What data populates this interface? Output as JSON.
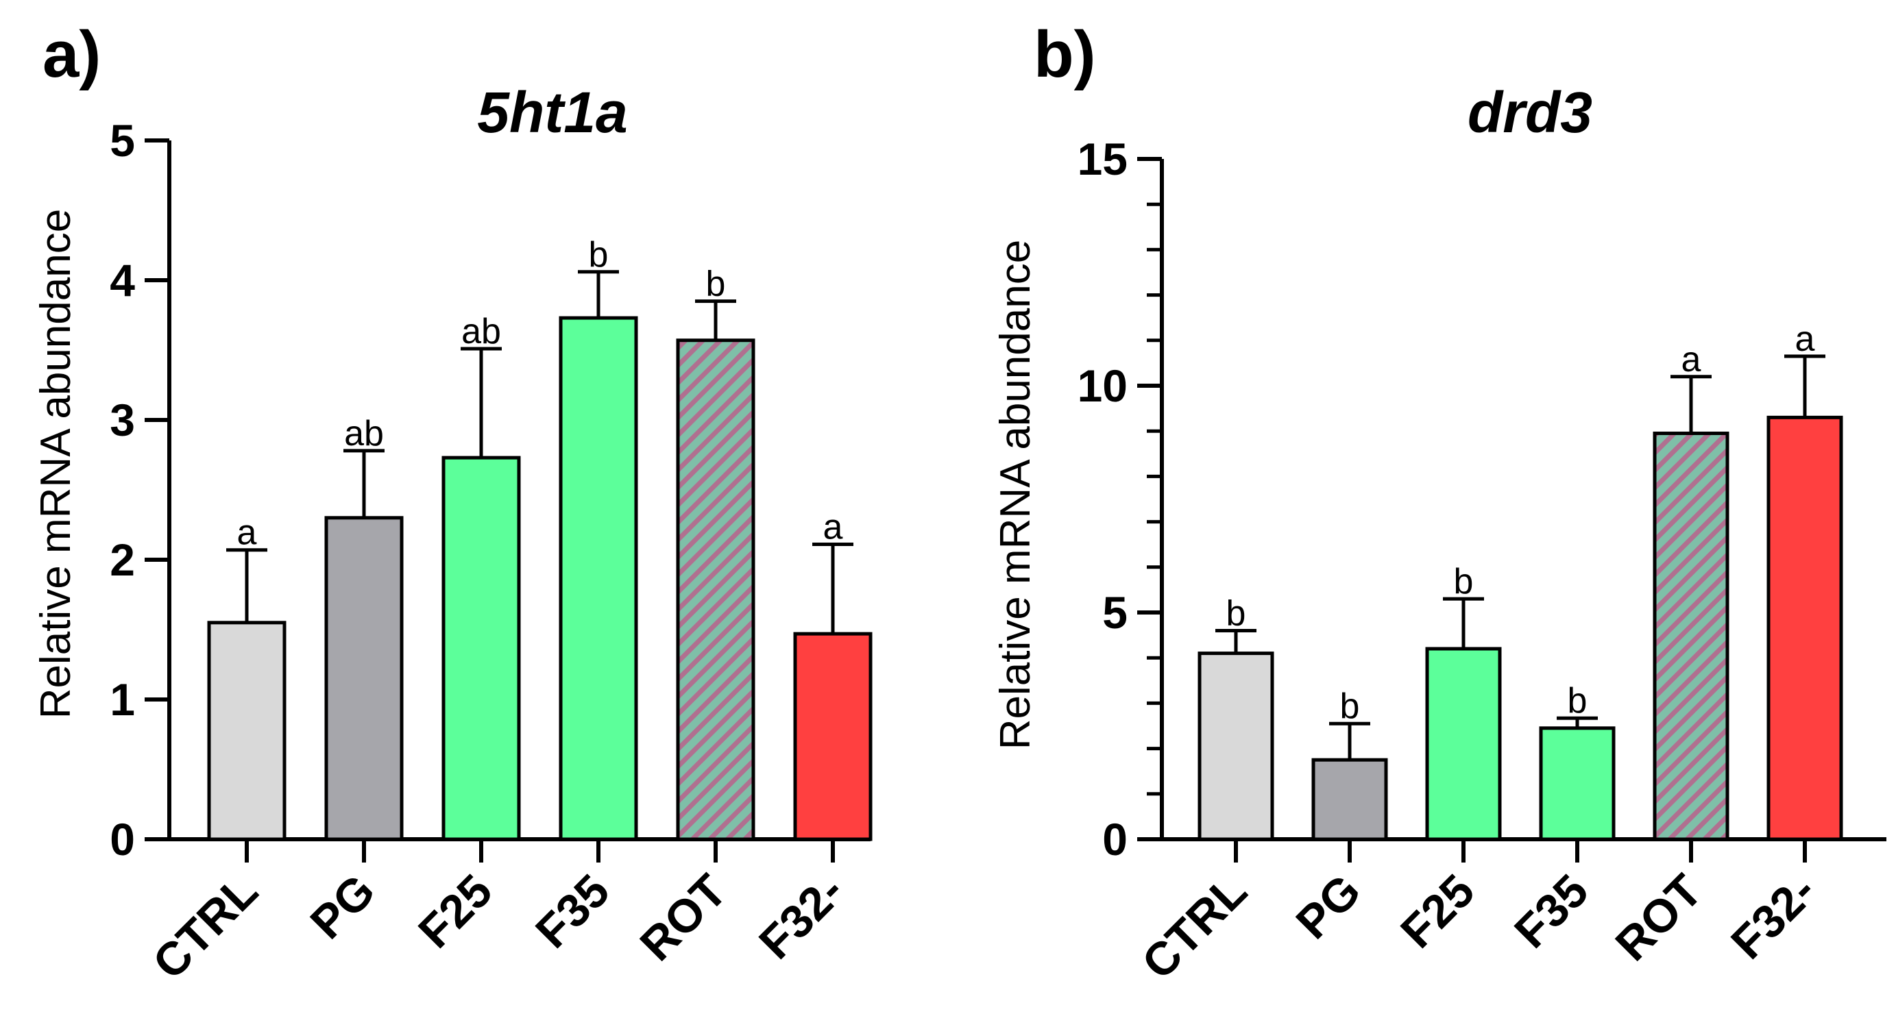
{
  "panels": [
    {
      "letter": "a)",
      "title": "5ht1a",
      "ylabel": "Relative mRNA abundance",
      "ylim": [
        0,
        5
      ],
      "yticks": [
        0,
        1,
        2,
        3,
        4,
        5
      ],
      "yticklabels": [
        "0",
        "1",
        "2",
        "3",
        "4",
        "5"
      ],
      "ysubdiv": 1
    },
    {
      "letter": "b)",
      "title": "drd3",
      "ylabel": "Relative mRNA abundance",
      "ylim": [
        0,
        15
      ],
      "yticks": [
        0,
        5,
        10,
        15
      ],
      "yticklabels": [
        "0",
        "5",
        "10",
        "15"
      ],
      "ysubdiv": 5
    }
  ],
  "colors": {
    "CTRL": "#d9d9d9",
    "PG": "#a6a6ab",
    "F25": "#5cff9a",
    "F35": "#5cff9a",
    "ROT": "hatch",
    "F32-": "#ff4040",
    "hatch_line_a": "#7fbfa8",
    "hatch_line_b": "#b07090",
    "axis": "#000000"
  },
  "chart_data": [
    {
      "type": "bar",
      "title": "5ht1a",
      "xlabel": "",
      "ylabel": "Relative mRNA abundance",
      "ylim": [
        0,
        5
      ],
      "categories": [
        "CTRL",
        "PG",
        "F25",
        "F35",
        "ROT",
        "F32-"
      ],
      "values": [
        1.55,
        2.3,
        2.73,
        3.73,
        3.57,
        1.47
      ],
      "errors": [
        0.52,
        0.48,
        0.78,
        0.33,
        0.28,
        0.64
      ],
      "significance": [
        "a",
        "ab",
        "ab",
        "b",
        "b",
        "a"
      ]
    },
    {
      "type": "bar",
      "title": "drd3",
      "xlabel": "",
      "ylabel": "Relative mRNA abundance",
      "ylim": [
        0,
        15
      ],
      "categories": [
        "CTRL",
        "PG",
        "F25",
        "F35",
        "ROT",
        "F32-"
      ],
      "values": [
        4.1,
        1.75,
        4.2,
        2.45,
        8.95,
        9.3
      ],
      "errors": [
        0.5,
        0.8,
        1.1,
        0.22,
        1.25,
        1.35
      ],
      "significance": [
        "b",
        "b",
        "b",
        "b",
        "a",
        "a"
      ]
    }
  ]
}
